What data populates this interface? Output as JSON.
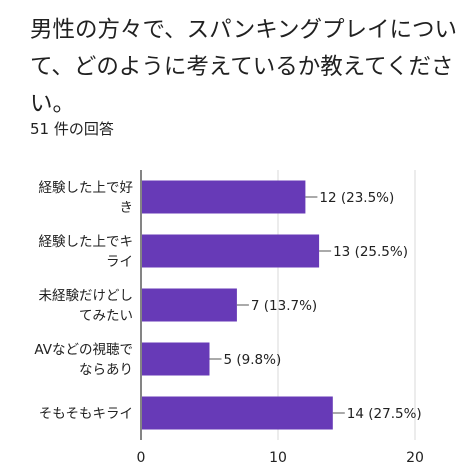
{
  "question": {
    "title": "男性の方々で、スパンキングプレイについて、どのように考えているか教えてください。",
    "response_count": "51 件の回答"
  },
  "colors": {
    "bar": "#673ab7",
    "grid": "#d9d9d9",
    "axis": "#333333",
    "text": "#212121",
    "leader": "#555555"
  },
  "chart_data": {
    "type": "bar",
    "orientation": "horizontal",
    "categories": [
      [
        "経験した上で好",
        "き"
      ],
      [
        "経験した上でキ",
        "ライ"
      ],
      [
        "未経験だけどし",
        "てみたい"
      ],
      [
        "AVなどの視聴で",
        "ならあり"
      ],
      [
        "そもそもキライ"
      ]
    ],
    "values": [
      12,
      13,
      7,
      5,
      14
    ],
    "data_labels": [
      "12 (23.5%)",
      "13 (25.5%)",
      "7 (13.7%)",
      "5 (9.8%)",
      "14 (27.5%)"
    ],
    "xlim": [
      0,
      20
    ],
    "x_ticks": [
      0,
      10,
      20
    ],
    "grid": true
  }
}
